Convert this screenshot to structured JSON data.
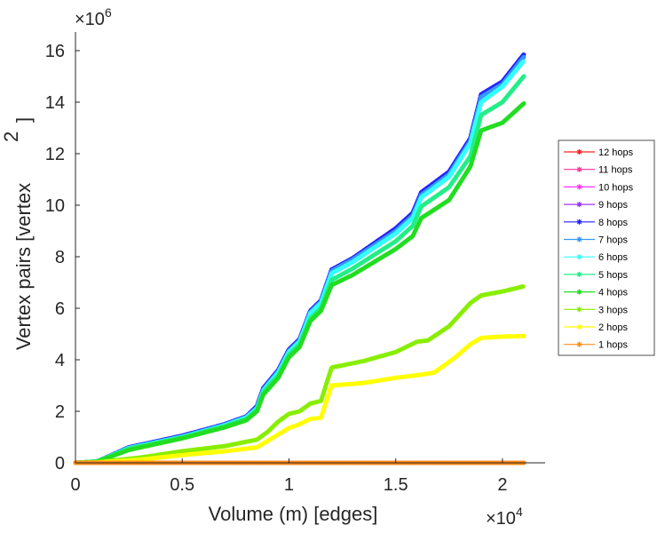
{
  "chart_data": {
    "type": "line",
    "title": "",
    "xlabel": "Volume (m) [edges]",
    "ylabel": "Vertex pairs [vertex",
    "ylabel_superscript": "2",
    "ylabel_close": "]",
    "x_multiplier": {
      "base": "×10",
      "exp": "4"
    },
    "y_multiplier": {
      "base": "×10",
      "exp": "6"
    },
    "x_units_scale": 10000,
    "y_units_scale": 1000000,
    "xlim": [
      0,
      2.2
    ],
    "ylim": [
      0,
      16.5
    ],
    "xticks": [
      0,
      0.5,
      1,
      1.5,
      2
    ],
    "xtick_labels": [
      "0",
      "0.5",
      "1",
      "1.5",
      "2"
    ],
    "yticks": [
      0,
      2,
      4,
      6,
      8,
      10,
      12,
      14,
      16
    ],
    "ytick_labels": [
      "0",
      "2",
      "4",
      "6",
      "8",
      "10",
      "12",
      "14",
      "16"
    ],
    "grid": false,
    "legend_position": "right",
    "marker": "asterisk",
    "series": [
      {
        "name": "12 hops",
        "color": "#ff2020",
        "x": [
          0,
          2.1
        ],
        "y": [
          0,
          0
        ]
      },
      {
        "name": "11 hops",
        "color": "#ff3399",
        "x": [
          0,
          2.1
        ],
        "y": [
          0,
          0
        ]
      },
      {
        "name": "10 hops",
        "color": "#ff33ff",
        "x": [
          0,
          2.1
        ],
        "y": [
          0,
          0
        ]
      },
      {
        "name": "9 hops",
        "color": "#9933ff",
        "x": [
          0,
          0.1,
          0.25,
          0.5,
          0.7,
          0.8,
          0.85,
          0.88,
          0.95,
          1.0,
          1.05,
          1.1,
          1.15,
          1.2,
          1.3,
          1.5,
          1.58,
          1.62,
          1.75,
          1.85,
          1.9,
          2.0,
          2.1
        ],
        "y": [
          0,
          0.05,
          0.6,
          1.05,
          1.5,
          1.8,
          2.2,
          2.9,
          3.6,
          4.4,
          4.8,
          5.9,
          6.3,
          7.5,
          7.95,
          9.1,
          9.7,
          10.5,
          11.3,
          12.6,
          14.3,
          14.8,
          15.85
        ]
      },
      {
        "name": "8 hops",
        "color": "#2222ff",
        "x": [
          0,
          0.1,
          0.25,
          0.5,
          0.7,
          0.8,
          0.85,
          0.88,
          0.95,
          1.0,
          1.05,
          1.1,
          1.15,
          1.2,
          1.3,
          1.5,
          1.58,
          1.62,
          1.75,
          1.85,
          1.9,
          2.0,
          2.1
        ],
        "y": [
          0,
          0.05,
          0.6,
          1.05,
          1.5,
          1.8,
          2.2,
          2.9,
          3.6,
          4.4,
          4.8,
          5.9,
          6.3,
          7.5,
          7.95,
          9.1,
          9.7,
          10.5,
          11.3,
          12.6,
          14.3,
          14.8,
          15.85
        ]
      },
      {
        "name": "7 hops",
        "color": "#3399ff",
        "x": [
          0,
          0.1,
          0.25,
          0.5,
          0.7,
          0.8,
          0.85,
          0.88,
          0.95,
          1.0,
          1.05,
          1.1,
          1.15,
          1.2,
          1.3,
          1.5,
          1.58,
          1.62,
          1.75,
          1.85,
          1.9,
          2.0,
          2.1
        ],
        "y": [
          0,
          0.05,
          0.58,
          1.02,
          1.48,
          1.78,
          2.15,
          2.85,
          3.55,
          4.35,
          4.75,
          5.85,
          6.25,
          7.45,
          7.9,
          9.0,
          9.6,
          10.4,
          11.2,
          12.5,
          14.2,
          14.7,
          15.75
        ]
      },
      {
        "name": "6 hops",
        "color": "#33ffff",
        "x": [
          0,
          0.1,
          0.25,
          0.5,
          0.7,
          0.8,
          0.85,
          0.88,
          0.95,
          1.0,
          1.05,
          1.1,
          1.15,
          1.2,
          1.3,
          1.5,
          1.58,
          1.62,
          1.75,
          1.85,
          1.9,
          2.0,
          2.1
        ],
        "y": [
          0,
          0.05,
          0.57,
          1.0,
          1.45,
          1.75,
          2.1,
          2.8,
          3.5,
          4.3,
          4.7,
          5.8,
          6.2,
          7.35,
          7.8,
          8.9,
          9.5,
          10.3,
          11.1,
          12.4,
          14.0,
          14.6,
          15.6
        ]
      },
      {
        "name": "5 hops",
        "color": "#22ee88",
        "x": [
          0,
          0.1,
          0.25,
          0.5,
          0.7,
          0.8,
          0.85,
          0.88,
          0.95,
          1.0,
          1.05,
          1.1,
          1.15,
          1.2,
          1.3,
          1.5,
          1.58,
          1.62,
          1.75,
          1.85,
          1.9,
          2.0,
          2.1
        ],
        "y": [
          0,
          0.05,
          0.55,
          0.98,
          1.42,
          1.7,
          2.05,
          2.75,
          3.4,
          4.2,
          4.6,
          5.6,
          6.0,
          7.1,
          7.55,
          8.6,
          9.2,
          9.95,
          10.7,
          11.9,
          13.5,
          14.0,
          15.0
        ]
      },
      {
        "name": "4 hops",
        "color": "#22dd22",
        "x": [
          0,
          0.1,
          0.25,
          0.5,
          0.7,
          0.8,
          0.85,
          0.88,
          0.95,
          1.0,
          1.05,
          1.1,
          1.15,
          1.2,
          1.3,
          1.5,
          1.58,
          1.62,
          1.75,
          1.85,
          1.9,
          2.0,
          2.1
        ],
        "y": [
          0,
          0.04,
          0.5,
          0.95,
          1.38,
          1.65,
          2.0,
          2.65,
          3.3,
          4.1,
          4.5,
          5.5,
          5.9,
          6.9,
          7.3,
          8.3,
          8.8,
          9.5,
          10.2,
          11.5,
          12.9,
          13.2,
          13.95
        ]
      },
      {
        "name": "3 hops",
        "color": "#88ee00",
        "x": [
          0,
          0.1,
          0.3,
          0.5,
          0.7,
          0.85,
          0.9,
          0.95,
          1.0,
          1.05,
          1.1,
          1.15,
          1.2,
          1.35,
          1.5,
          1.6,
          1.65,
          1.75,
          1.85,
          1.9,
          2.0,
          2.1
        ],
        "y": [
          0,
          0.02,
          0.2,
          0.45,
          0.65,
          0.9,
          1.2,
          1.6,
          1.9,
          2.0,
          2.3,
          2.4,
          3.7,
          3.95,
          4.3,
          4.7,
          4.75,
          5.3,
          6.2,
          6.5,
          6.65,
          6.85
        ]
      },
      {
        "name": "2 hops",
        "color": "#ffff00",
        "x": [
          0,
          0.1,
          0.3,
          0.5,
          0.7,
          0.85,
          0.9,
          0.95,
          1.0,
          1.05,
          1.1,
          1.15,
          1.2,
          1.35,
          1.5,
          1.6,
          1.68,
          1.78,
          1.85,
          1.9,
          2.0,
          2.1
        ],
        "y": [
          0,
          0.01,
          0.12,
          0.3,
          0.45,
          0.6,
          0.85,
          1.1,
          1.35,
          1.5,
          1.7,
          1.75,
          3.0,
          3.1,
          3.3,
          3.4,
          3.5,
          4.1,
          4.6,
          4.85,
          4.9,
          4.92
        ]
      },
      {
        "name": "1 hops",
        "color": "#ff8c1a",
        "x": [
          0,
          2.1
        ],
        "y": [
          0,
          0
        ]
      }
    ]
  }
}
